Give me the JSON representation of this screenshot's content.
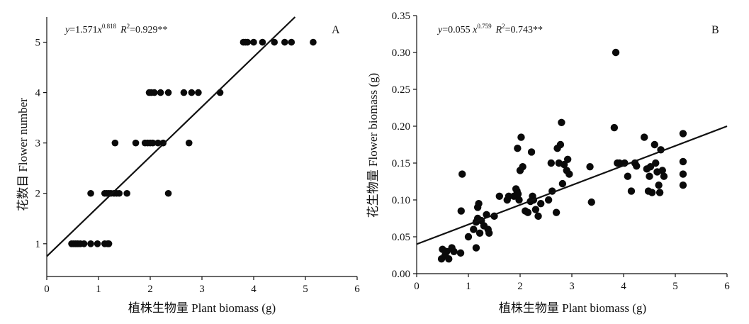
{
  "chart_data": [
    {
      "type": "scatter",
      "panel": "A",
      "equation": {
        "prefix": "y",
        "mid": "=1.571",
        "x": "x",
        "exp": "0.818",
        "r": "R",
        "r_exp": "2",
        "r_val": "=0.929**"
      },
      "xlabel": "植株生物量 Plant biomass (g)",
      "ylabel": "花数目 Flower number",
      "xlim": [
        0,
        6
      ],
      "ylim": [
        0.35,
        5.5
      ],
      "xticks": [
        0,
        1,
        2,
        3,
        4,
        5,
        6
      ],
      "yticks": [
        1,
        2,
        3,
        4,
        5
      ],
      "grid": false,
      "fit": {
        "a": 1.571,
        "b": 0.818,
        "line_start": [
          0,
          0.75
        ],
        "line_end": [
          4.8,
          5.5
        ]
      },
      "points": [
        [
          0.48,
          1
        ],
        [
          0.52,
          1
        ],
        [
          0.56,
          1
        ],
        [
          0.6,
          1
        ],
        [
          0.65,
          1
        ],
        [
          0.72,
          1
        ],
        [
          0.85,
          1
        ],
        [
          0.98,
          1
        ],
        [
          1.12,
          1
        ],
        [
          1.18,
          1
        ],
        [
          1.2,
          1
        ],
        [
          0.85,
          2
        ],
        [
          1.12,
          2
        ],
        [
          1.16,
          2
        ],
        [
          1.2,
          2
        ],
        [
          1.24,
          2
        ],
        [
          1.3,
          2
        ],
        [
          1.35,
          2
        ],
        [
          1.4,
          2
        ],
        [
          1.55,
          2
        ],
        [
          2.35,
          2
        ],
        [
          1.32,
          3
        ],
        [
          1.72,
          3
        ],
        [
          1.9,
          3
        ],
        [
          1.95,
          3
        ],
        [
          2.0,
          3
        ],
        [
          2.05,
          3
        ],
        [
          2.15,
          3
        ],
        [
          2.25,
          3
        ],
        [
          2.75,
          3
        ],
        [
          1.98,
          4
        ],
        [
          2.02,
          4
        ],
        [
          2.08,
          4
        ],
        [
          2.2,
          4
        ],
        [
          2.35,
          4
        ],
        [
          2.65,
          4
        ],
        [
          2.8,
          4
        ],
        [
          2.93,
          4
        ],
        [
          3.35,
          4
        ],
        [
          3.8,
          5
        ],
        [
          3.84,
          5
        ],
        [
          3.88,
          5
        ],
        [
          4.0,
          5
        ],
        [
          4.17,
          5
        ],
        [
          4.4,
          5
        ],
        [
          4.6,
          5
        ],
        [
          4.73,
          5
        ],
        [
          5.15,
          5
        ]
      ]
    },
    {
      "type": "scatter",
      "panel": "B",
      "equation": {
        "prefix": "y",
        "mid": "=0.055 ",
        "x": "x",
        "exp": "0.759",
        "r": "R",
        "r_exp": "2",
        "r_val": "=0.743**"
      },
      "xlabel": "植株生物量 Plant biomass (g)",
      "ylabel": "花生物量 Flower biomass (g)",
      "xlim": [
        0,
        6
      ],
      "ylim": [
        0,
        0.35
      ],
      "xticks": [
        0,
        1,
        2,
        3,
        4,
        5,
        6
      ],
      "yticks": [
        "0.00",
        "0.05",
        "0.10",
        "0.15",
        "0.20",
        "0.25",
        "0.30",
        "0.35"
      ],
      "grid": false,
      "fit": {
        "a": 0.055,
        "b": 0.759,
        "line_start": [
          0,
          0.04
        ],
        "line_end": [
          6,
          0.2
        ]
      },
      "points": [
        [
          0.48,
          0.02
        ],
        [
          0.5,
          0.033
        ],
        [
          0.55,
          0.025
        ],
        [
          0.58,
          0.03
        ],
        [
          0.62,
          0.02
        ],
        [
          0.68,
          0.035
        ],
        [
          0.72,
          0.03
        ],
        [
          0.85,
          0.028
        ],
        [
          0.86,
          0.085
        ],
        [
          0.88,
          0.135
        ],
        [
          1.0,
          0.05
        ],
        [
          1.1,
          0.06
        ],
        [
          1.15,
          0.035
        ],
        [
          1.15,
          0.07
        ],
        [
          1.18,
          0.075
        ],
        [
          1.18,
          0.09
        ],
        [
          1.2,
          0.095
        ],
        [
          1.22,
          0.055
        ],
        [
          1.25,
          0.072
        ],
        [
          1.3,
          0.065
        ],
        [
          1.35,
          0.08
        ],
        [
          1.38,
          0.06
        ],
        [
          1.4,
          0.055
        ],
        [
          1.5,
          0.078
        ],
        [
          1.6,
          0.105
        ],
        [
          1.75,
          0.1
        ],
        [
          1.78,
          0.105
        ],
        [
          1.88,
          0.105
        ],
        [
          1.92,
          0.115
        ],
        [
          1.94,
          0.112
        ],
        [
          1.95,
          0.17
        ],
        [
          1.96,
          0.108
        ],
        [
          1.98,
          0.1
        ],
        [
          2.0,
          0.14
        ],
        [
          2.02,
          0.185
        ],
        [
          2.05,
          0.145
        ],
        [
          2.1,
          0.085
        ],
        [
          2.15,
          0.083
        ],
        [
          2.2,
          0.098
        ],
        [
          2.22,
          0.165
        ],
        [
          2.24,
          0.105
        ],
        [
          2.26,
          0.1
        ],
        [
          2.3,
          0.087
        ],
        [
          2.35,
          0.078
        ],
        [
          2.4,
          0.095
        ],
        [
          2.55,
          0.1
        ],
        [
          2.6,
          0.15
        ],
        [
          2.62,
          0.112
        ],
        [
          2.7,
          0.083
        ],
        [
          2.72,
          0.17
        ],
        [
          2.75,
          0.15
        ],
        [
          2.78,
          0.175
        ],
        [
          2.8,
          0.205
        ],
        [
          2.82,
          0.122
        ],
        [
          2.85,
          0.148
        ],
        [
          2.9,
          0.14
        ],
        [
          2.92,
          0.155
        ],
        [
          2.95,
          0.135
        ],
        [
          3.35,
          0.145
        ],
        [
          3.38,
          0.097
        ],
        [
          3.85,
          0.3
        ],
        [
          3.82,
          0.198
        ],
        [
          3.88,
          0.15
        ],
        [
          3.92,
          0.15
        ],
        [
          4.02,
          0.15
        ],
        [
          4.08,
          0.132
        ],
        [
          4.15,
          0.112
        ],
        [
          4.22,
          0.15
        ],
        [
          4.25,
          0.146
        ],
        [
          4.4,
          0.185
        ],
        [
          4.45,
          0.142
        ],
        [
          4.48,
          0.112
        ],
        [
          4.5,
          0.132
        ],
        [
          4.52,
          0.145
        ],
        [
          4.55,
          0.11
        ],
        [
          4.6,
          0.175
        ],
        [
          4.62,
          0.15
        ],
        [
          4.65,
          0.138
        ],
        [
          4.68,
          0.12
        ],
        [
          4.7,
          0.11
        ],
        [
          4.72,
          0.168
        ],
        [
          4.75,
          0.14
        ],
        [
          4.78,
          0.132
        ],
        [
          5.15,
          0.19
        ],
        [
          5.15,
          0.152
        ],
        [
          5.15,
          0.135
        ],
        [
          5.15,
          0.12
        ]
      ]
    }
  ]
}
